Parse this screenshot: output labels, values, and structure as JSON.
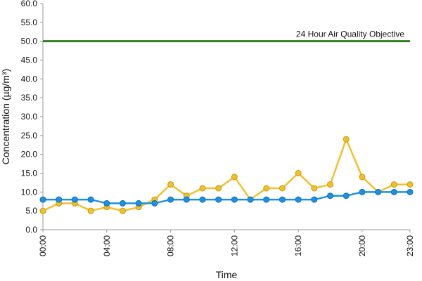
{
  "chart_data": {
    "type": "line",
    "xlabel": "Time",
    "ylabel": "Concentration (µg/m³)",
    "ylim": [
      0,
      60
    ],
    "y_ticks": [
      "0.0",
      "5.0",
      "10.0",
      "15.0",
      "20.0",
      "25.0",
      "30.0",
      "35.0",
      "40.0",
      "45.0",
      "50.0",
      "55.0",
      "60.0"
    ],
    "x_ticks": [
      {
        "i": 0,
        "label": "00:00"
      },
      {
        "i": 4,
        "label": "04:00"
      },
      {
        "i": 8,
        "label": "08:00"
      },
      {
        "i": 12,
        "label": "12:00"
      },
      {
        "i": 16,
        "label": "16:00"
      },
      {
        "i": 20,
        "label": "20:00"
      },
      {
        "i": 23,
        "label": "23:00"
      }
    ],
    "grid": false,
    "objective": {
      "value": 50,
      "label": "24 Hour Air Quality Objective",
      "color": "#2e7d1f"
    },
    "series": [
      {
        "color": "#f0c030",
        "values": [
          5,
          7,
          7,
          5,
          6,
          5,
          6,
          8,
          12,
          9,
          11,
          11,
          14,
          8,
          11,
          11,
          15,
          11,
          12,
          24,
          14,
          10,
          12,
          12
        ]
      },
      {
        "color": "#1e90e0",
        "values": [
          8,
          8,
          8,
          8,
          7,
          7,
          7,
          7,
          8,
          8,
          8,
          8,
          8,
          8,
          8,
          8,
          8,
          8,
          9,
          9,
          10,
          10,
          10,
          10
        ]
      }
    ]
  }
}
